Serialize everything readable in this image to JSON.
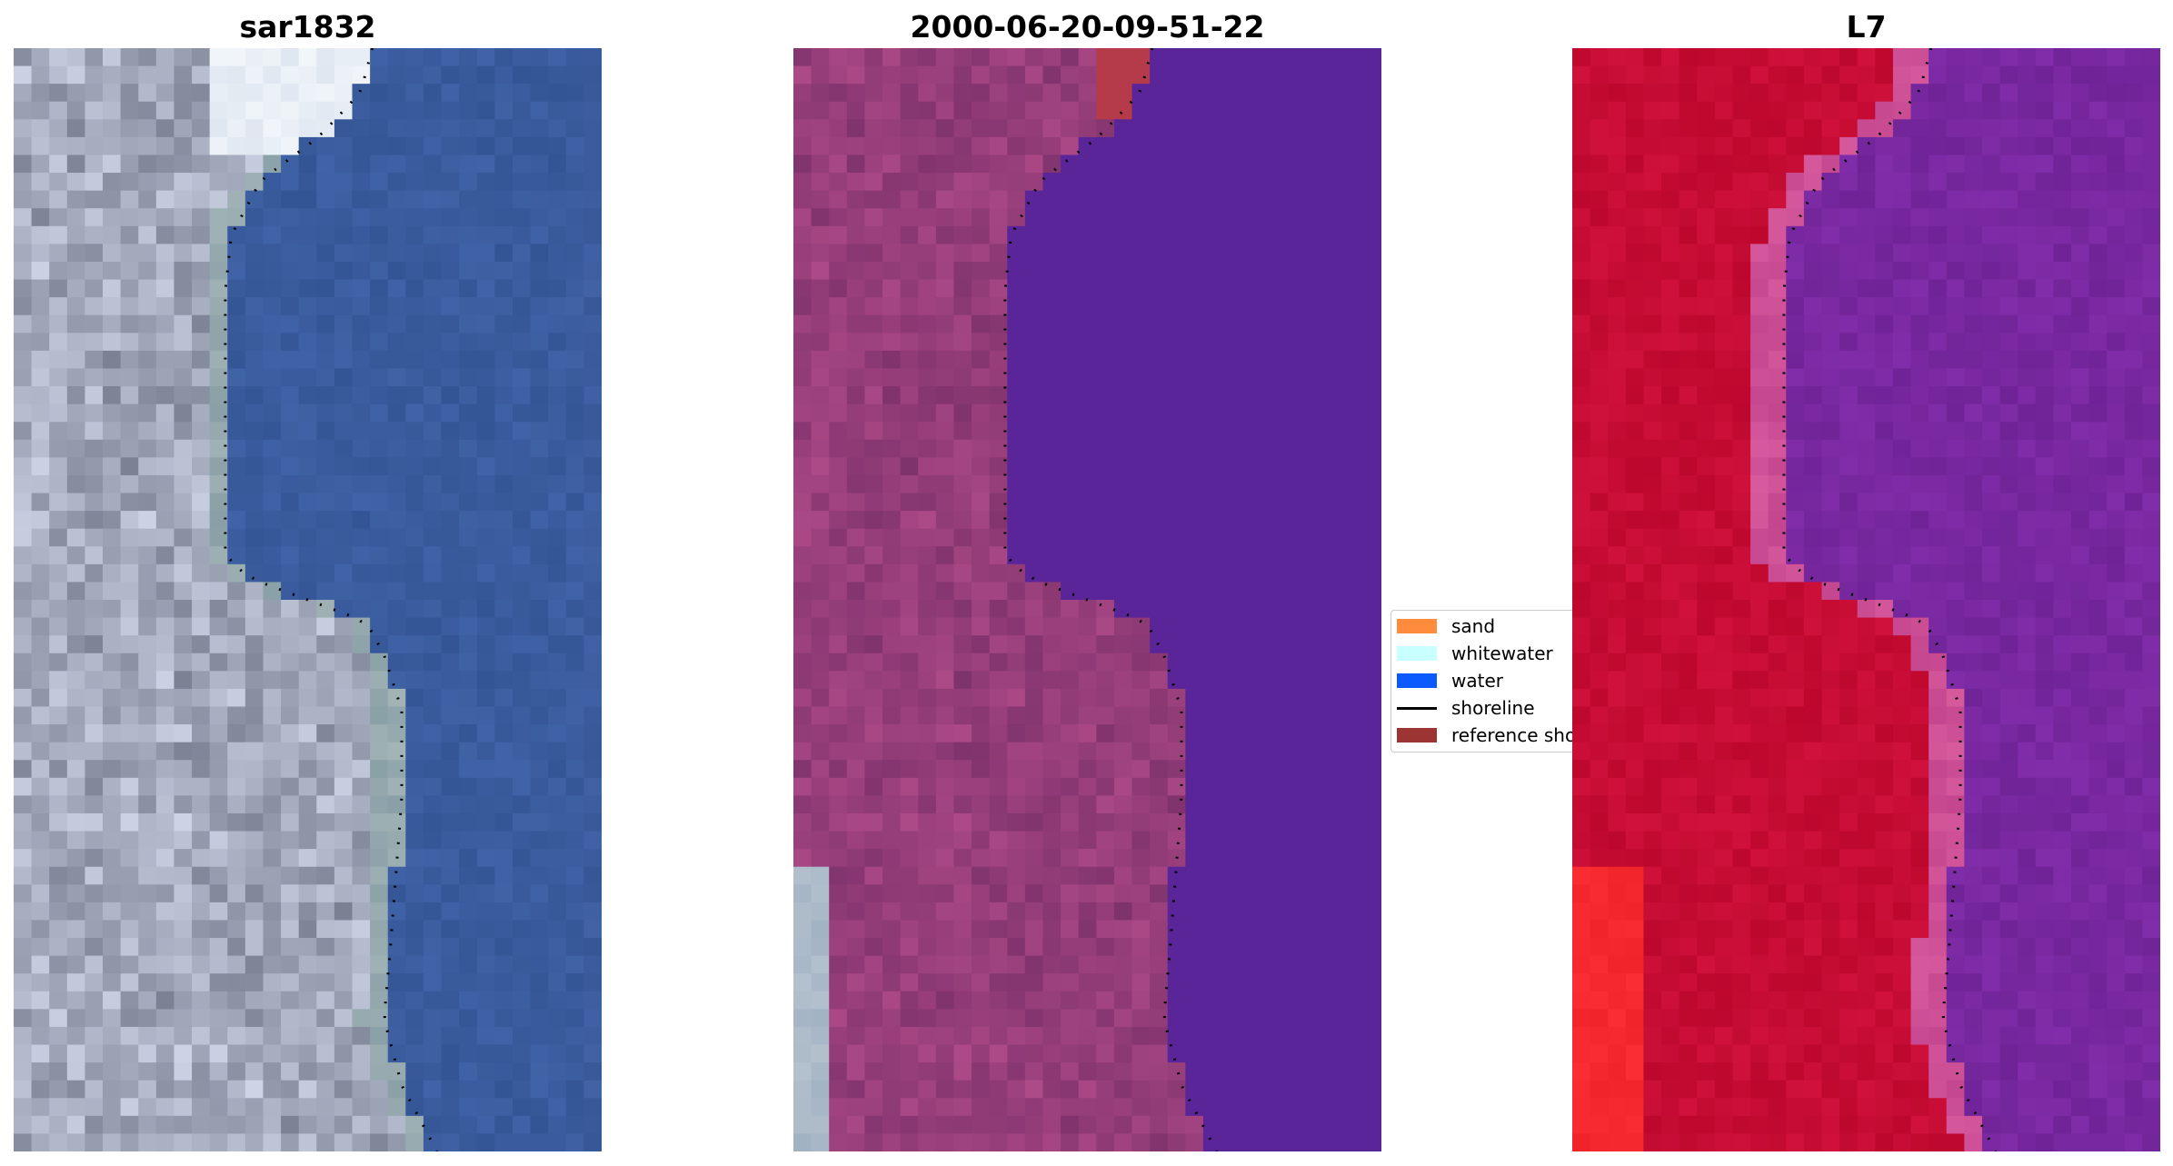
{
  "panels": [
    {
      "title": "sar1832",
      "style": "rgb"
    },
    {
      "title": "2000-06-20-09-51-22",
      "style": "classified"
    },
    {
      "title": "L7",
      "style": "ndwi"
    }
  ],
  "legend": {
    "items": [
      {
        "label": "sand",
        "kind": "patch",
        "color": "#ff8c3c"
      },
      {
        "label": "whitewater",
        "kind": "patch",
        "color": "#c8ffff"
      },
      {
        "label": "water",
        "kind": "patch",
        "color": "#0a5aff"
      },
      {
        "label": "shoreline",
        "kind": "line",
        "color": "#000000"
      },
      {
        "label": "reference shoreline",
        "kind": "patch",
        "color": "#9c3434"
      }
    ]
  },
  "colors": {
    "sea_blue": "#3b5f9e",
    "land_gray": "#a9b4c4",
    "classified_water": "#5a2599",
    "classified_land": "#8e3c79",
    "ndwi_land": "#c8103a",
    "ndwi_water": "#7a2a9e"
  }
}
